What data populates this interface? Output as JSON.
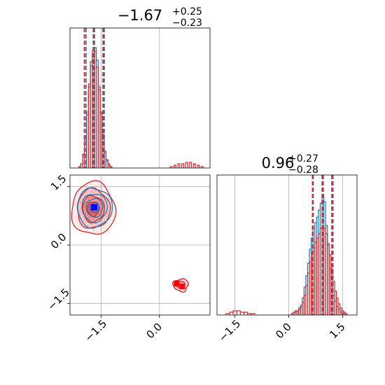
{
  "chart_data": [
    {
      "type": "histogram",
      "panel": "param1-marginal",
      "title": {
        "median": "−1.67",
        "upper": "+0.25",
        "lower": "−0.23"
      },
      "xlim": [
        -2.3,
        1.3
      ],
      "grid": true,
      "series": [
        {
          "name": "",
          "color": "#1f77b4",
          "bins_x": [
            -2.1,
            -2.05,
            -2.0,
            -1.95,
            -1.9,
            -1.85,
            -1.8,
            -1.75,
            -1.7,
            -1.65,
            -1.6,
            -1.55,
            -1.5,
            -1.45,
            -1.4,
            -1.35,
            -1.3,
            -1.25,
            -1.2,
            -1.15
          ],
          "values": [
            0.0,
            0.01,
            0.03,
            0.09,
            0.2,
            0.38,
            0.58,
            0.73,
            0.81,
            0.86,
            0.77,
            0.58,
            0.4,
            0.24,
            0.11,
            0.05,
            0.02,
            0.01,
            0.0,
            0.0
          ],
          "quantile_lines": [
            -1.89,
            -1.67,
            -1.42
          ]
        },
        {
          "name": "",
          "color": "#d62728",
          "bins_x": [
            -2.1,
            -2.05,
            -2.0,
            -1.95,
            -1.9,
            -1.85,
            -1.8,
            -1.75,
            -1.7,
            -1.65,
            -1.6,
            -1.55,
            -1.5,
            -1.45,
            -1.4,
            -1.35,
            -1.3,
            -1.25,
            -1.2,
            -1.15,
            -1.1,
            -0.2,
            -0.1,
            0.0,
            0.1,
            0.2,
            0.3,
            0.4,
            0.5,
            0.6,
            0.7,
            0.8,
            0.9,
            1.0,
            1.1,
            1.2
          ],
          "values": [
            0.0,
            0.01,
            0.03,
            0.1,
            0.22,
            0.4,
            0.6,
            0.76,
            0.84,
            0.83,
            0.72,
            0.56,
            0.39,
            0.24,
            0.12,
            0.06,
            0.03,
            0.01,
            0.0,
            0.0,
            0.0,
            0.0,
            0.0,
            0.0,
            0.0,
            0.0,
            0.01,
            0.02,
            0.03,
            0.03,
            0.04,
            0.04,
            0.03,
            0.02,
            0.01,
            0.0
          ],
          "quantile_lines": [
            -1.93,
            -1.7,
            -1.45
          ]
        }
      ]
    },
    {
      "type": "contour",
      "panel": "joint",
      "xlim": [
        -2.3,
        1.3
      ],
      "ylim": [
        -1.8,
        1.8
      ],
      "grid": true,
      "series": [
        {
          "name": "",
          "color": "#1f77b4",
          "center": [
            -1.67,
            0.96
          ],
          "spread": [
            0.25,
            0.28
          ],
          "marker": "square"
        },
        {
          "name": "",
          "color": "#d62728",
          "center": [
            -1.7,
            0.93
          ],
          "spread": [
            0.28,
            0.34
          ],
          "marker": "square"
        },
        {
          "name": "",
          "color": "#d62728",
          "center": [
            0.55,
            -1.03
          ],
          "spread": [
            0.12,
            0.1
          ],
          "marker": "square"
        }
      ]
    },
    {
      "type": "histogram",
      "panel": "param2-marginal",
      "title": {
        "median": "0.96",
        "upper": "+0.27",
        "lower": "−0.28"
      },
      "xlim": [
        -2.0,
        1.9
      ],
      "grid": true,
      "series": [
        {
          "name": "",
          "color": "#1f77b4",
          "bins_x": [
            0.0,
            0.05,
            0.1,
            0.15,
            0.2,
            0.25,
            0.3,
            0.35,
            0.4,
            0.45,
            0.5,
            0.55,
            0.6,
            0.65,
            0.7,
            0.75,
            0.8,
            0.85,
            0.9,
            0.95,
            1.0,
            1.05,
            1.1,
            1.15,
            1.2,
            1.25,
            1.3,
            1.35,
            1.4,
            1.45,
            1.5,
            1.55,
            1.6,
            1.65,
            1.7
          ],
          "values": [
            0.0,
            0.0,
            0.01,
            0.02,
            0.02,
            0.03,
            0.05,
            0.07,
            0.12,
            0.2,
            0.28,
            0.37,
            0.47,
            0.55,
            0.62,
            0.66,
            0.7,
            0.75,
            0.8,
            0.86,
            0.81,
            0.64,
            0.5,
            0.33,
            0.22,
            0.14,
            0.1,
            0.06,
            0.04,
            0.02,
            0.01,
            0.01,
            0.0,
            0.0,
            0.0
          ],
          "quantile_lines": [
            0.68,
            0.96,
            1.23
          ]
        },
        {
          "name": "",
          "color": "#d62728",
          "bins_x": [
            -1.8,
            -1.7,
            -1.6,
            -1.5,
            -1.4,
            -1.3,
            -1.2,
            -1.1,
            -1.0,
            -0.9,
            0.0,
            0.05,
            0.1,
            0.15,
            0.2,
            0.25,
            0.3,
            0.35,
            0.4,
            0.45,
            0.5,
            0.55,
            0.6,
            0.65,
            0.7,
            0.75,
            0.8,
            0.85,
            0.9,
            0.95,
            1.0,
            1.05,
            1.1,
            1.15,
            1.2,
            1.25,
            1.3,
            1.35,
            1.4,
            1.45,
            1.5,
            1.55,
            1.6,
            1.65,
            1.7
          ],
          "values": [
            0.0,
            0.01,
            0.02,
            0.03,
            0.03,
            0.02,
            0.02,
            0.01,
            0.01,
            0.0,
            0.0,
            0.0,
            0.01,
            0.02,
            0.03,
            0.03,
            0.04,
            0.06,
            0.09,
            0.14,
            0.21,
            0.3,
            0.38,
            0.44,
            0.48,
            0.52,
            0.55,
            0.58,
            0.62,
            0.63,
            0.62,
            0.58,
            0.51,
            0.43,
            0.33,
            0.24,
            0.17,
            0.12,
            0.08,
            0.05,
            0.03,
            0.02,
            0.01,
            0.0,
            0.0
          ],
          "quantile_lines": [
            0.66,
            0.93,
            1.2
          ]
        }
      ]
    }
  ],
  "axes": {
    "x_ticks_param1": [
      "−1.5",
      "0.0",
      "1.5"
    ],
    "x_ticks_param2": [
      "−1.5",
      "0.0",
      "1.5"
    ],
    "y_ticks_param2": [
      "1.5",
      "0.0",
      "−1.5"
    ]
  }
}
